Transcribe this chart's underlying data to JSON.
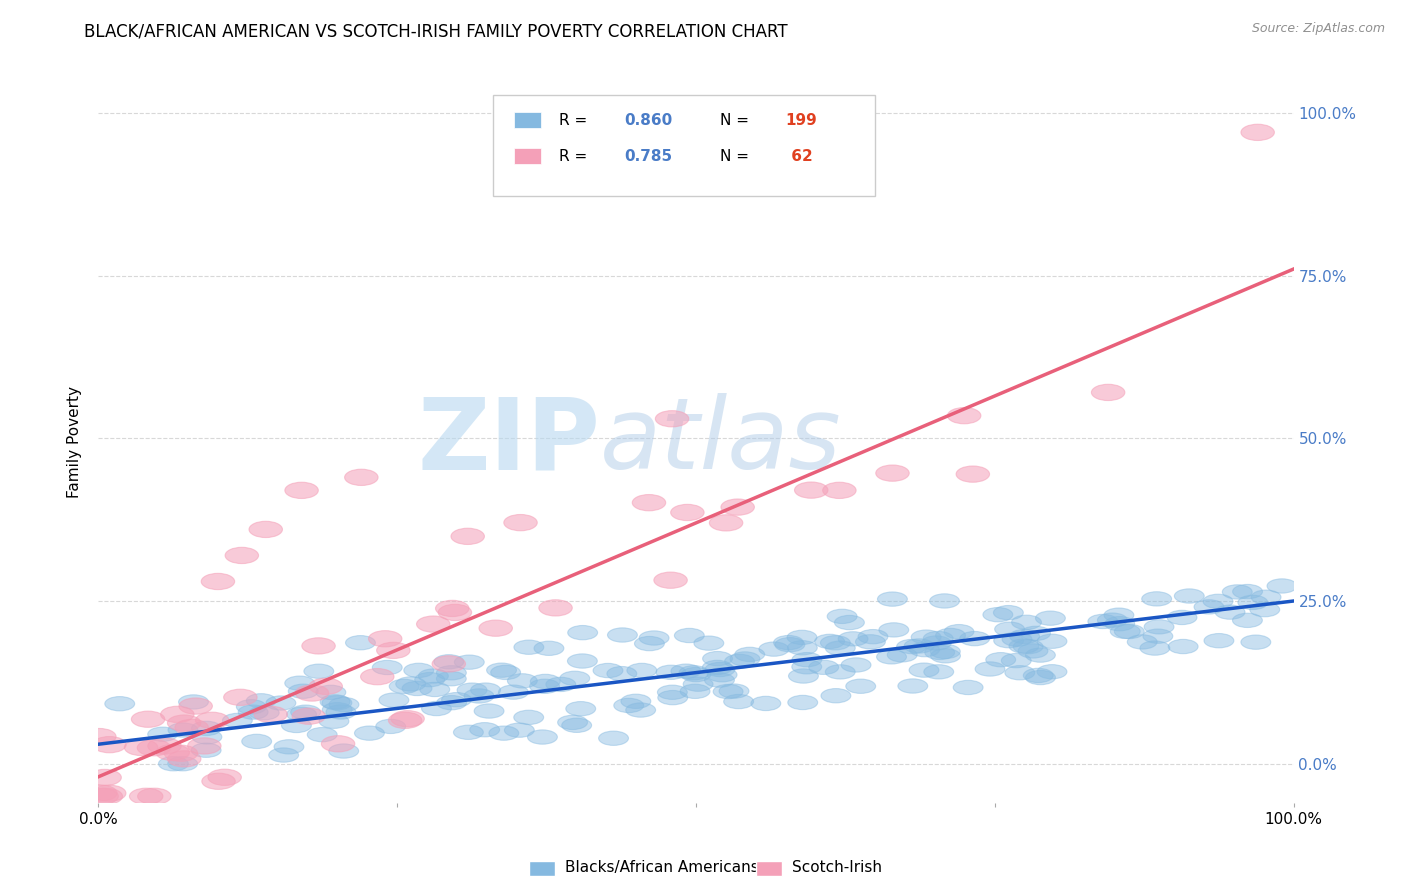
{
  "title": "BLACK/AFRICAN AMERICAN VS SCOTCH-IRISH FAMILY POVERTY CORRELATION CHART",
  "source": "Source: ZipAtlas.com",
  "ylabel": "Family Poverty",
  "legend_label_blue": "Blacks/African Americans",
  "legend_label_pink": "Scotch-Irish",
  "blue_R": 0.86,
  "blue_N": 199,
  "pink_R": 0.785,
  "pink_N": 62,
  "blue_color": "#85b9e0",
  "pink_color": "#f4a0b8",
  "blue_line_color": "#1a56c4",
  "pink_line_color": "#e8607a",
  "ytick_labels": [
    "0.0%",
    "25.0%",
    "50.0%",
    "75.0%",
    "100.0%"
  ],
  "ytick_values": [
    0.0,
    0.25,
    0.5,
    0.75,
    1.0
  ],
  "xtick_labels": [
    "0.0%",
    "100.0%"
  ],
  "xtick_values": [
    0.0,
    1.0
  ],
  "background_color": "#ffffff",
  "grid_color": "#d8d8d8",
  "title_fontsize": 12,
  "blue_slope": 0.22,
  "blue_intercept": 0.03,
  "pink_slope": 0.78,
  "pink_intercept": -0.02,
  "ymin": -0.06,
  "ymax": 1.05,
  "xmin": 0.0,
  "xmax": 1.0
}
